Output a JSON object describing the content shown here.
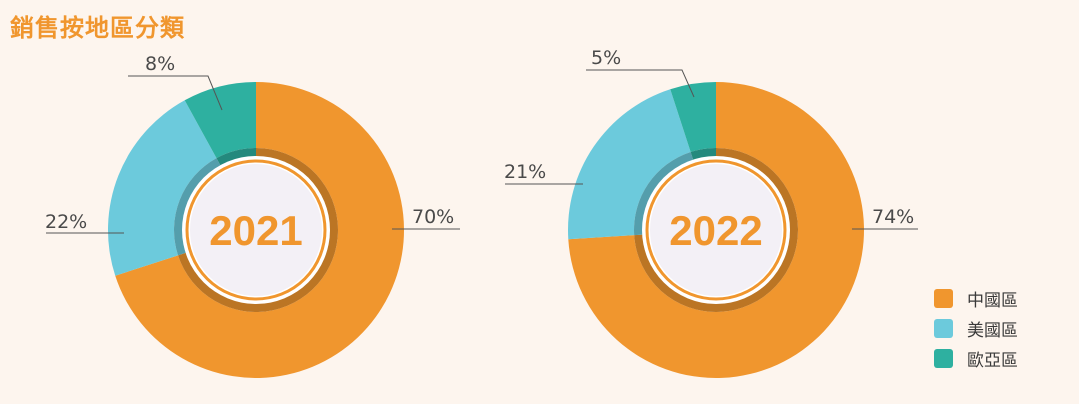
{
  "title": "銷售按地區分類",
  "colors": {
    "china": "#f0962e",
    "usa": "#6ccadc",
    "europe": "#2eb0a0",
    "accent": "#f0962e"
  },
  "legend": [
    {
      "label": "中國區",
      "color": "#f0962e"
    },
    {
      "label": "美國區",
      "color": "#6ccadc"
    },
    {
      "label": "歐亞區",
      "color": "#2eb0a0"
    }
  ],
  "chart_data": [
    {
      "type": "pie",
      "center_label": "2021",
      "categories": [
        "中國區",
        "美國區",
        "歐亞區"
      ],
      "values": [
        70,
        22,
        8
      ],
      "labels": [
        "70%",
        "22%",
        "8%"
      ]
    },
    {
      "type": "pie",
      "center_label": "2022",
      "categories": [
        "中國區",
        "美國區",
        "歐亞區"
      ],
      "values": [
        74,
        21,
        5
      ],
      "labels": [
        "74%",
        "21%",
        "5%"
      ]
    }
  ]
}
